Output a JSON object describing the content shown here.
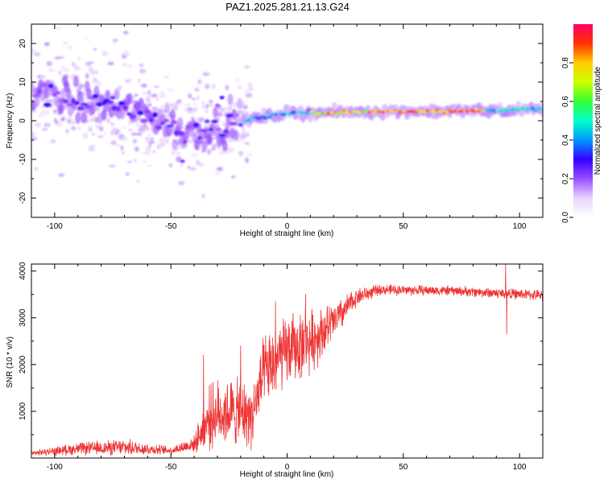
{
  "title": "PAZ1.2025.281.21.13.G24",
  "chart_data": [
    {
      "type": "heatmap",
      "name": "spectrogram",
      "xlabel": "Height of straight line (km)",
      "ylabel": "Frequency (Hz)",
      "xlim": [
        -110,
        110
      ],
      "ylim": [
        -25,
        25
      ],
      "xticks": [
        -100,
        -50,
        0,
        50,
        100
      ],
      "yticks": [
        -20,
        -10,
        0,
        10,
        20
      ],
      "colorbar": {
        "label": "Normalized spectral amplitude",
        "range": [
          0,
          1
        ],
        "ticks": [
          0.0,
          0.2,
          0.4,
          0.6,
          0.8
        ],
        "tick_labels": [
          "0.0",
          "0.2",
          "0.4",
          "0.6",
          "0.8"
        ],
        "colormap": [
          "#ffffff",
          "#e8d4ff",
          "#9a4dff",
          "#3300ff",
          "#0099ff",
          "#00ffcc",
          "#33ff33",
          "#ccff00",
          "#ffcc00",
          "#ff3300",
          "#ff0066"
        ]
      },
      "ridge": [
        {
          "x": -105,
          "f": 7
        },
        {
          "x": -90,
          "f": 5
        },
        {
          "x": -75,
          "f": 3.5
        },
        {
          "x": -60,
          "f": 2
        },
        {
          "x": -45,
          "f": -3.5
        },
        {
          "x": -35,
          "f": -2
        },
        {
          "x": -25,
          "f": -1
        },
        {
          "x": -15,
          "f": 0.5
        },
        {
          "x": 0,
          "f": 2
        },
        {
          "x": 25,
          "f": 2.2
        },
        {
          "x": 50,
          "f": 2.5
        },
        {
          "x": 75,
          "f": 2.5
        },
        {
          "x": 95,
          "f": 2.8
        },
        {
          "x": 110,
          "f": 3
        }
      ]
    },
    {
      "type": "line",
      "name": "snr",
      "xlabel": "Height of straight line (km)",
      "ylabel": "SNR (10 * v/v)",
      "xlim": [
        -110,
        110
      ],
      "ylim": [
        0,
        4150
      ],
      "xticks": [
        -100,
        -50,
        0,
        50,
        100
      ],
      "yticks": [
        1000,
        2000,
        3000,
        4000
      ],
      "color": "#ee3333",
      "envelope": [
        {
          "x": -110,
          "mean": 100,
          "amp": 60
        },
        {
          "x": -90,
          "mean": 200,
          "amp": 150
        },
        {
          "x": -70,
          "mean": 230,
          "amp": 200
        },
        {
          "x": -50,
          "mean": 160,
          "amp": 100
        },
        {
          "x": -40,
          "mean": 300,
          "amp": 200
        },
        {
          "x": -33,
          "mean": 900,
          "amp": 800
        },
        {
          "x": -25,
          "mean": 1000,
          "amp": 850
        },
        {
          "x": -15,
          "mean": 900,
          "amp": 800
        },
        {
          "x": -10,
          "mean": 1800,
          "amp": 900
        },
        {
          "x": 0,
          "mean": 2300,
          "amp": 900
        },
        {
          "x": 10,
          "mean": 2500,
          "amp": 800
        },
        {
          "x": 20,
          "mean": 2900,
          "amp": 500
        },
        {
          "x": 30,
          "mean": 3450,
          "amp": 220
        },
        {
          "x": 40,
          "mean": 3600,
          "amp": 130
        },
        {
          "x": 70,
          "mean": 3580,
          "amp": 120
        },
        {
          "x": 90,
          "mean": 3530,
          "amp": 130
        },
        {
          "x": 110,
          "mean": 3480,
          "amp": 130
        }
      ],
      "spikes": [
        {
          "x": -36,
          "y": 2200
        },
        {
          "x": -20,
          "y": 2400
        },
        {
          "x": -5,
          "y": 3350
        },
        {
          "x": 8,
          "y": 3500
        },
        {
          "x": 94,
          "y": 4150
        },
        {
          "x": 94.5,
          "y": 2650
        }
      ]
    }
  ]
}
